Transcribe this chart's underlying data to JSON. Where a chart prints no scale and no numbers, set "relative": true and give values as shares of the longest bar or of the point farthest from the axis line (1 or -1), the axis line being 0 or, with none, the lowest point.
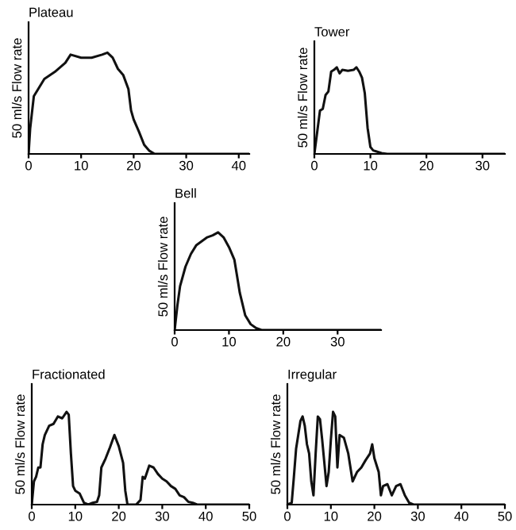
{
  "chart_data": [
    {
      "type": "line",
      "title": "Plateau",
      "ylabel": "50 ml/s Flow rate",
      "relative": true,
      "tick_labels": "x",
      "xlim": [
        0,
        42
      ],
      "xticks": [
        0,
        10,
        20,
        30,
        40
      ],
      "series": [
        {
          "color": "#111111",
          "x": [
            0,
            0.3,
            1,
            3,
            5,
            7,
            8,
            10,
            12,
            14,
            15,
            16,
            17,
            18,
            19,
            19.5,
            20,
            21,
            22,
            23,
            24,
            42
          ],
          "values": [
            0,
            0.25,
            0.57,
            0.74,
            0.81,
            0.9,
            0.98,
            0.95,
            0.95,
            0.98,
            1,
            0.95,
            0.84,
            0.78,
            0.64,
            0.43,
            0.34,
            0.22,
            0.09,
            0.03,
            0,
            0
          ]
        }
      ]
    },
    {
      "type": "line",
      "title": "Tower",
      "ylabel": "50 ml/s Flow rate",
      "relative": true,
      "tick_labels": "x",
      "xlim": [
        0,
        34
      ],
      "xticks": [
        0,
        10,
        20,
        30
      ],
      "series": [
        {
          "color": "#111111",
          "x": [
            0,
            0.5,
            1,
            1.5,
            2,
            2.5,
            3,
            3.5,
            4,
            4.5,
            5,
            6,
            7,
            7.5,
            8,
            8.5,
            9,
            9.5,
            10,
            10.5,
            11,
            12,
            13,
            34
          ],
          "values": [
            0,
            0.25,
            0.5,
            0.52,
            0.68,
            0.72,
            0.95,
            0.97,
            1,
            0.93,
            0.97,
            0.96,
            0.97,
            1,
            0.95,
            0.88,
            0.7,
            0.3,
            0.08,
            0.04,
            0.03,
            0.01,
            0,
            0
          ]
        }
      ]
    },
    {
      "type": "line",
      "title": "Bell",
      "ylabel": "50 ml/s Flow rate",
      "relative": true,
      "tick_labels": "x",
      "xlim": [
        0,
        38
      ],
      "xticks": [
        0,
        10,
        20,
        30
      ],
      "series": [
        {
          "color": "#111111",
          "x": [
            0,
            0.5,
            1,
            2,
            3,
            4,
            5,
            6,
            7,
            8,
            9,
            10,
            11,
            11.5,
            12,
            13,
            14,
            15,
            16,
            38
          ],
          "values": [
            0,
            0.25,
            0.45,
            0.65,
            0.78,
            0.87,
            0.91,
            0.95,
            0.97,
            1,
            0.95,
            0.85,
            0.72,
            0.55,
            0.38,
            0.15,
            0.06,
            0.02,
            0,
            0
          ]
        }
      ]
    },
    {
      "type": "line",
      "title": "Fractionated",
      "ylabel": "50 ml/s Flow rate",
      "relative": true,
      "tick_labels": "x",
      "xlim": [
        0,
        50
      ],
      "xticks": [
        0,
        10,
        20,
        30,
        40,
        50
      ],
      "series": [
        {
          "color": "#111111",
          "x": [
            0,
            0.5,
            1,
            1.5,
            2,
            2.5,
            3,
            4,
            5,
            6,
            7,
            8,
            8.5,
            9,
            9.5,
            10,
            11,
            12,
            13,
            14,
            15,
            15.5,
            16,
            17,
            18,
            19,
            20,
            21,
            21.5,
            22,
            24,
            25,
            25.5,
            26,
            27,
            28,
            29,
            30,
            31,
            32,
            33,
            34,
            35,
            36,
            37,
            38,
            50
          ],
          "values": [
            0,
            0.25,
            0.3,
            0.4,
            0.4,
            0.65,
            0.75,
            0.85,
            0.87,
            0.95,
            0.93,
            1,
            0.97,
            0.55,
            0.2,
            0.15,
            0.12,
            0.02,
            0,
            0.02,
            0.03,
            0.1,
            0.4,
            0.5,
            0.62,
            0.75,
            0.63,
            0.45,
            0.15,
            0,
            0,
            0.05,
            0.3,
            0.28,
            0.42,
            0.4,
            0.33,
            0.28,
            0.25,
            0.2,
            0.17,
            0.1,
            0.08,
            0.03,
            0.02,
            0,
            0
          ]
        }
      ]
    },
    {
      "type": "line",
      "title": "Irregular",
      "ylabel": "50 ml/s Flow rate",
      "relative": true,
      "tick_labels": "x",
      "xlim": [
        0,
        50
      ],
      "xticks": [
        0,
        10,
        20,
        30,
        40,
        50
      ],
      "series": [
        {
          "color": "#111111",
          "x": [
            0,
            1,
            1.5,
            2,
            2.5,
            3,
            3.5,
            4,
            4.5,
            5,
            5.5,
            6,
            6.5,
            7,
            7.5,
            8,
            8.5,
            9,
            9.5,
            10,
            10.5,
            11,
            11.5,
            12,
            13,
            14,
            15,
            16,
            17,
            18,
            19,
            19.5,
            20,
            21,
            21.5,
            22,
            23,
            24,
            25,
            26,
            27,
            28,
            29,
            50
          ],
          "values": [
            0,
            0.02,
            0.3,
            0.6,
            0.75,
            0.9,
            0.95,
            0.85,
            0.65,
            0.55,
            0.25,
            0.1,
            0.55,
            0.95,
            0.92,
            0.7,
            0.45,
            0.2,
            0.35,
            0.7,
            1,
            0.95,
            0.4,
            0.75,
            0.72,
            0.55,
            0.25,
            0.35,
            0.4,
            0.48,
            0.55,
            0.65,
            0.5,
            0.35,
            0.1,
            0.2,
            0.22,
            0.1,
            0.2,
            0.22,
            0.1,
            0.02,
            0,
            0
          ]
        }
      ]
    }
  ]
}
